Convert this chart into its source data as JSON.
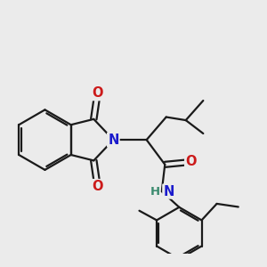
{
  "background_color": "#ebebeb",
  "bond_color": "#1a1a1a",
  "atom_colors": {
    "N": "#1a1acc",
    "O": "#cc1a1a",
    "H": "#3a8a6e",
    "C": "#1a1a1a"
  },
  "bond_width": 1.6,
  "font_size_atom": 10.5,
  "font_size_h": 9.5
}
